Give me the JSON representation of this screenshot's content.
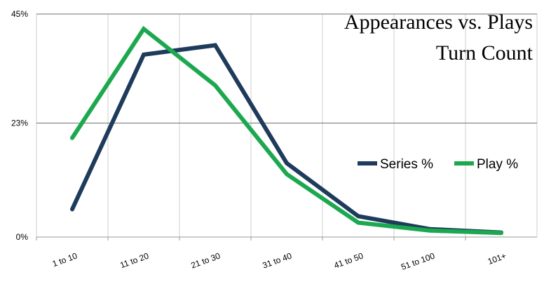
{
  "chart_data": {
    "type": "line",
    "title": "Appearances vs. Plays",
    "subtitle": "Turn Count",
    "xlabel": "",
    "ylabel": "",
    "categories": [
      "1 to 10",
      "11 to 20",
      "21 to 30",
      "31 to 40",
      "41 to 50",
      "51 to 100",
      "101+"
    ],
    "y_ticks": [
      0,
      23,
      45
    ],
    "y_tick_labels": [
      "0%",
      "23%",
      "45%"
    ],
    "ylim": [
      0,
      45
    ],
    "grid": "horizontal lines at y ticks",
    "legend_position": "right-middle",
    "series": [
      {
        "name": "Series %",
        "color": "#1f3b5c",
        "values": [
          5.6,
          36.8,
          38.7,
          14.9,
          4.2,
          1.6,
          0.9
        ]
      },
      {
        "name": "Play %",
        "color": "#1ca84f",
        "values": [
          20.0,
          42.0,
          30.6,
          12.7,
          2.9,
          1.3,
          0.8
        ]
      }
    ]
  }
}
